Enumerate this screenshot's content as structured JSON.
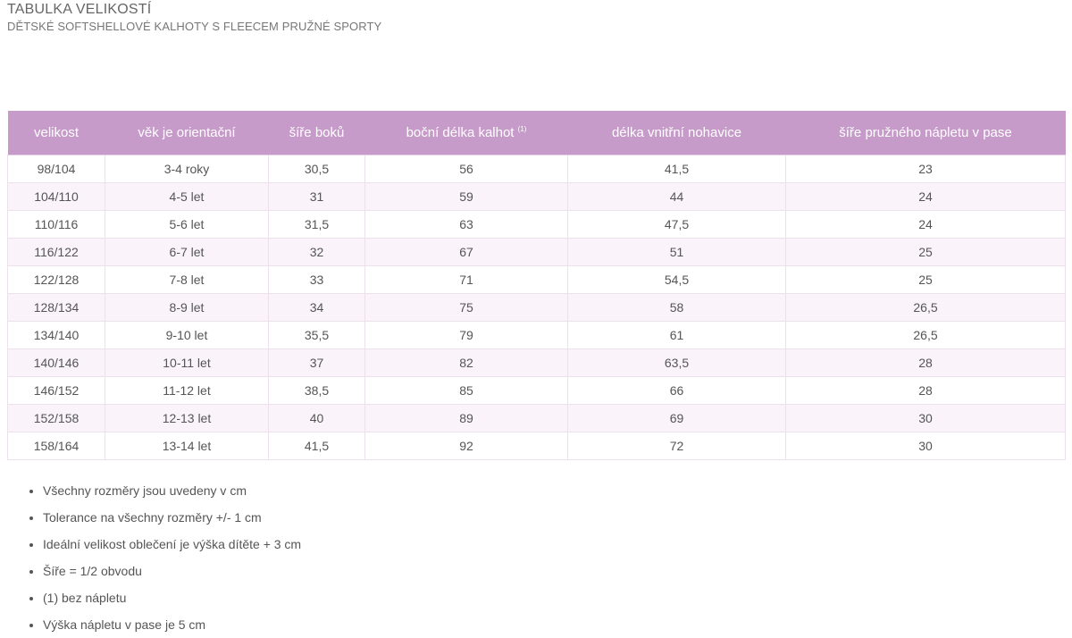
{
  "header": {
    "title": "TABULKA VELIKOSTÍ",
    "subtitle": "DĚTSKÉ SOFTSHELLOVÉ KALHOTY S FLEECEM PRUŽNÉ SPORTY"
  },
  "table": {
    "columns": [
      "velikost",
      "věk je orientační",
      "šíře boků",
      "boční délka kalhot",
      "délka vnitřní nohavice",
      "šíře pružného nápletu v pase"
    ],
    "footnote_mark": "(1)",
    "rows": [
      [
        "98/104",
        "3-4 roky",
        "30,5",
        "56",
        "41,5",
        "23"
      ],
      [
        "104/110",
        "4-5 let",
        "31",
        "59",
        "44",
        "24"
      ],
      [
        "110/116",
        "5-6 let",
        "31,5",
        "63",
        "47,5",
        "24"
      ],
      [
        "116/122",
        "6-7 let",
        "32",
        "67",
        "51",
        "25"
      ],
      [
        "122/128",
        "7-8 let",
        "33",
        "71",
        "54,5",
        "25"
      ],
      [
        "128/134",
        "8-9 let",
        "34",
        "75",
        "58",
        "26,5"
      ],
      [
        "134/140",
        "9-10 let",
        "35,5",
        "79",
        "61",
        "26,5"
      ],
      [
        "140/146",
        "10-11 let",
        "37",
        "82",
        "63,5",
        "28"
      ],
      [
        "146/152",
        "11-12 let",
        "38,5",
        "85",
        "66",
        "28"
      ],
      [
        "152/158",
        "12-13 let",
        "40",
        "89",
        "69",
        "30"
      ],
      [
        "158/164",
        "13-14 let",
        "41,5",
        "92",
        "72",
        "30"
      ]
    ]
  },
  "notes": [
    "Všechny rozměry jsou uvedeny v cm",
    "Tolerance na všechny rozměry +/- 1 cm",
    "Ideální velikost oblečení je výška dítěte + 3 cm",
    "Šíře = 1/2 obvodu",
    "(1) bez nápletu",
    "Výška nápletu v pase je 5 cm"
  ]
}
